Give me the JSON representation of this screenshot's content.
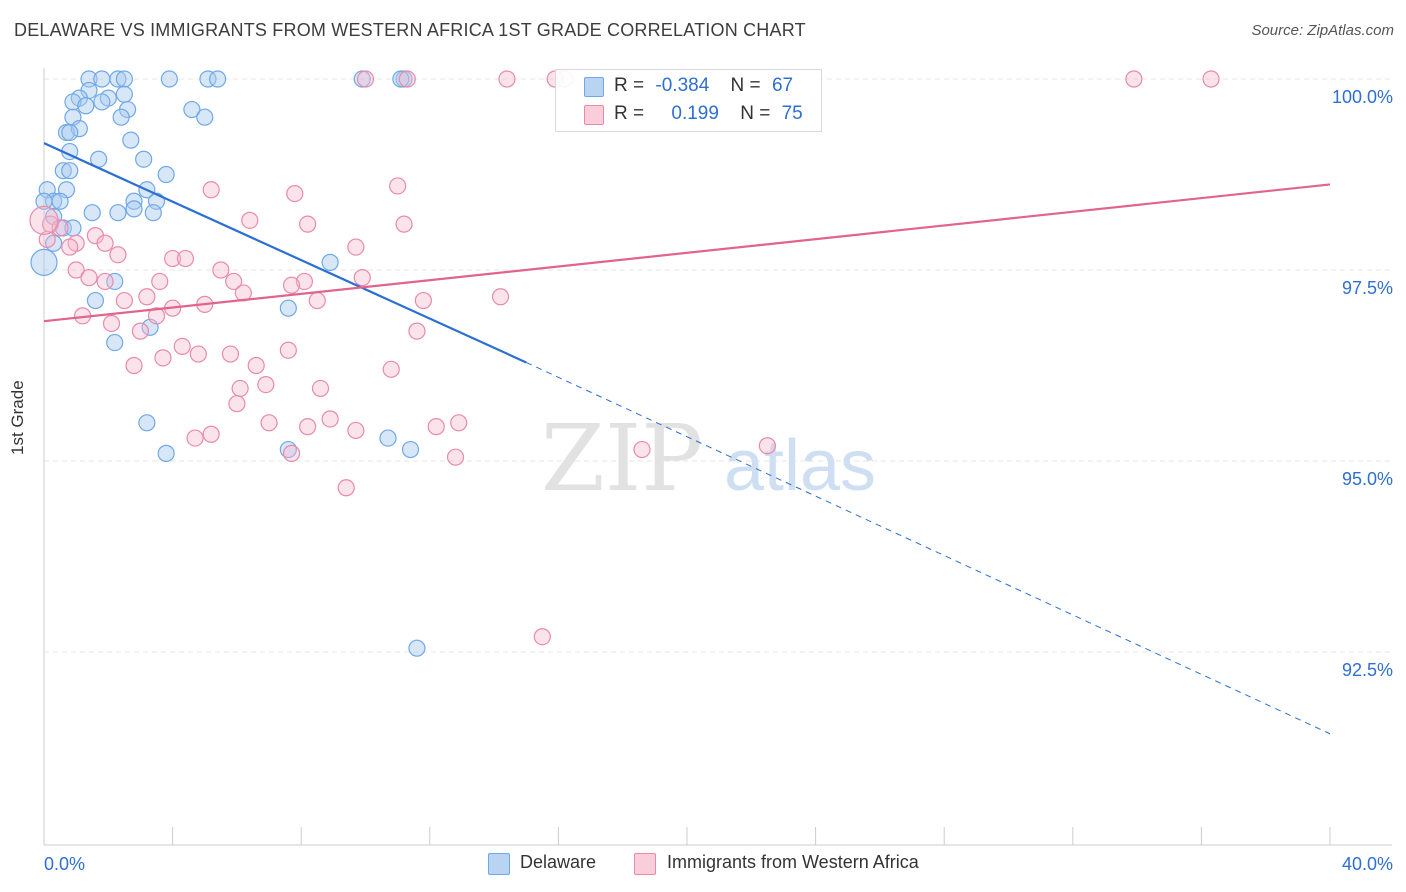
{
  "title": "DELAWARE VS IMMIGRANTS FROM WESTERN AFRICA 1ST GRADE CORRELATION CHART",
  "source": "Source: ZipAtlas.com",
  "watermark": {
    "zip": "ZIP",
    "atlas": "atlas"
  },
  "colors": {
    "blue": "#6fa8e8",
    "blue_fill": "#a9c9f0",
    "blue_line": "#2a6fd1",
    "pink": "#e98aa9",
    "pink_fill": "#f4b9cc",
    "pink_line": "#e0648f",
    "value_text": "#2f6fcf"
  },
  "legend": {
    "row1": {
      "r_label": "R =",
      "r_value": "-0.384",
      "n_label": "N =",
      "n_value": "67"
    },
    "row2": {
      "r_label": "R =",
      "r_value": "0.199",
      "n_label": "N =",
      "n_value": "75"
    }
  },
  "bottom_legend": {
    "series1": "Delaware",
    "series2": "Immigrants from Western Africa"
  },
  "chart_data": {
    "type": "scatter",
    "title": "DELAWARE VS IMMIGRANTS FROM WESTERN AFRICA 1ST GRADE CORRELATION CHART",
    "xlabel": "",
    "ylabel": "1st Grade",
    "xlim": [
      0,
      40
    ],
    "ylim": [
      90.0,
      100.4
    ],
    "x_tick_labels": [
      "0.0%",
      "40.0%"
    ],
    "y_ticks": [
      92.5,
      95.0,
      97.5,
      100.0
    ],
    "y_tick_labels": [
      "92.5%",
      "95.0%",
      "97.5%",
      "100.0%"
    ],
    "grid": true,
    "legend_position": "top-center",
    "series": [
      {
        "name": "Delaware",
        "color": "#6fa8e8",
        "R": -0.384,
        "N": 67,
        "trend": {
          "x0": 0.0,
          "y0": 99.16,
          "x1": 15.0,
          "y1": 96.29,
          "dashed_to_x": 40.0,
          "dashed_to_y": 91.43
        },
        "points": [
          [
            1.4,
            100.0
          ],
          [
            1.8,
            100.0
          ],
          [
            2.3,
            100.0
          ],
          [
            2.5,
            100.0
          ],
          [
            3.9,
            100.0
          ],
          [
            5.1,
            100.0
          ],
          [
            5.4,
            100.0
          ],
          [
            9.9,
            100.0
          ],
          [
            11.2,
            100.0
          ],
          [
            11.1,
            100.0
          ],
          [
            1.4,
            99.85
          ],
          [
            1.1,
            99.75
          ],
          [
            2.0,
            99.75
          ],
          [
            2.5,
            99.8
          ],
          [
            1.8,
            99.7
          ],
          [
            0.9,
            99.7
          ],
          [
            1.3,
            99.65
          ],
          [
            4.6,
            99.6
          ],
          [
            5.0,
            99.5
          ],
          [
            2.6,
            99.6
          ],
          [
            2.4,
            99.5
          ],
          [
            0.9,
            99.5
          ],
          [
            0.7,
            99.3
          ],
          [
            1.1,
            99.35
          ],
          [
            0.8,
            99.3
          ],
          [
            2.7,
            99.2
          ],
          [
            0.8,
            99.05
          ],
          [
            1.7,
            98.95
          ],
          [
            3.1,
            98.95
          ],
          [
            0.6,
            98.8
          ],
          [
            0.8,
            98.8
          ],
          [
            3.8,
            98.75
          ],
          [
            0.1,
            98.55
          ],
          [
            0.7,
            98.55
          ],
          [
            3.2,
            98.55
          ],
          [
            0.3,
            98.4
          ],
          [
            0.5,
            98.4
          ],
          [
            2.8,
            98.4
          ],
          [
            3.5,
            98.4
          ],
          [
            0.0,
            98.4
          ],
          [
            1.5,
            98.25
          ],
          [
            2.3,
            98.25
          ],
          [
            2.8,
            98.3
          ],
          [
            3.4,
            98.25
          ],
          [
            0.3,
            98.2
          ],
          [
            0.6,
            98.05
          ],
          [
            0.9,
            98.05
          ],
          [
            0.3,
            97.85
          ],
          [
            0.0,
            97.6
          ],
          [
            8.9,
            97.6
          ],
          [
            2.2,
            97.35
          ],
          [
            1.6,
            97.1
          ],
          [
            7.6,
            97.0
          ],
          [
            3.3,
            96.75
          ],
          [
            2.2,
            96.55
          ],
          [
            3.2,
            95.5
          ],
          [
            3.8,
            95.1
          ],
          [
            7.6,
            95.15
          ],
          [
            10.7,
            95.3
          ],
          [
            11.4,
            95.15
          ],
          [
            11.6,
            92.55
          ]
        ]
      },
      {
        "name": "Immigrants from Western Africa",
        "color": "#e98aa9",
        "R": 0.199,
        "N": 75,
        "trend": {
          "x0": 0.0,
          "y0": 96.83,
          "x1": 40.0,
          "y1": 98.62
        },
        "points": [
          [
            10.0,
            100.0
          ],
          [
            11.3,
            100.0
          ],
          [
            14.4,
            100.0
          ],
          [
            15.9,
            100.0
          ],
          [
            16.2,
            100.0
          ],
          [
            33.9,
            100.0
          ],
          [
            36.3,
            100.0
          ],
          [
            5.2,
            98.55
          ],
          [
            7.8,
            98.5
          ],
          [
            11.0,
            98.6
          ],
          [
            6.4,
            98.15
          ],
          [
            11.2,
            98.1
          ],
          [
            8.2,
            98.1
          ],
          [
            0.2,
            98.1
          ],
          [
            0.5,
            98.05
          ],
          [
            0.1,
            97.9
          ],
          [
            1.6,
            97.95
          ],
          [
            1.0,
            97.85
          ],
          [
            1.9,
            97.85
          ],
          [
            0.8,
            97.8
          ],
          [
            9.7,
            97.8
          ],
          [
            2.3,
            97.7
          ],
          [
            4.0,
            97.65
          ],
          [
            4.4,
            97.65
          ],
          [
            1.0,
            97.5
          ],
          [
            5.5,
            97.5
          ],
          [
            1.4,
            97.4
          ],
          [
            1.9,
            97.35
          ],
          [
            3.6,
            97.35
          ],
          [
            5.9,
            97.35
          ],
          [
            8.1,
            97.35
          ],
          [
            7.7,
            97.3
          ],
          [
            9.9,
            97.4
          ],
          [
            6.2,
            97.2
          ],
          [
            3.2,
            97.15
          ],
          [
            2.5,
            97.1
          ],
          [
            8.5,
            97.1
          ],
          [
            11.8,
            97.1
          ],
          [
            14.2,
            97.15
          ],
          [
            5.0,
            97.05
          ],
          [
            3.5,
            96.9
          ],
          [
            4.0,
            97.0
          ],
          [
            1.2,
            96.9
          ],
          [
            2.1,
            96.8
          ],
          [
            3.0,
            96.7
          ],
          [
            11.6,
            96.7
          ],
          [
            4.3,
            96.5
          ],
          [
            7.6,
            96.45
          ],
          [
            4.8,
            96.4
          ],
          [
            3.7,
            96.35
          ],
          [
            5.8,
            96.4
          ],
          [
            2.8,
            96.25
          ],
          [
            6.6,
            96.25
          ],
          [
            10.8,
            96.2
          ],
          [
            6.9,
            96.0
          ],
          [
            6.1,
            95.95
          ],
          [
            8.6,
            95.95
          ],
          [
            6.0,
            95.75
          ],
          [
            8.9,
            95.55
          ],
          [
            7.0,
            95.5
          ],
          [
            8.2,
            95.45
          ],
          [
            9.7,
            95.4
          ],
          [
            12.2,
            95.45
          ],
          [
            12.9,
            95.5
          ],
          [
            5.2,
            95.35
          ],
          [
            4.7,
            95.3
          ],
          [
            7.7,
            95.1
          ],
          [
            18.6,
            95.15
          ],
          [
            22.5,
            95.2
          ],
          [
            12.8,
            95.05
          ],
          [
            9.4,
            94.65
          ],
          [
            15.5,
            92.7
          ],
          [
            0.0,
            98.15
          ]
        ]
      }
    ]
  }
}
